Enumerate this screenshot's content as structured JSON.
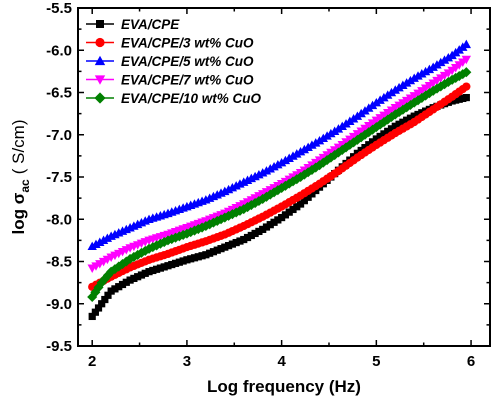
{
  "chart_data": {
    "type": "scatter",
    "xlabel": "Log frequency (Hz)",
    "ylabel": {
      "main": "log σ",
      "sub": "ac",
      "unit": "( S/cm)"
    },
    "xlim": [
      1.85,
      6.2
    ],
    "ylim": [
      -9.5,
      -5.5
    ],
    "xticks": [
      2,
      3,
      4,
      5,
      6
    ],
    "yticks": [
      -9.5,
      -9.0,
      -8.5,
      -8.0,
      -7.5,
      -7.0,
      -6.5,
      -6.0,
      -5.5
    ],
    "ytick_labels": [
      "-9.5",
      "-9.0",
      "-8.5",
      "-8.0",
      "-7.5",
      "-7.0",
      "-6.5",
      "-6.0",
      "-5.5"
    ],
    "grid": false,
    "legend_position": "top-left",
    "series": [
      {
        "name": "EVA/CPE",
        "color": "#000000",
        "marker": "square",
        "points": [
          [
            2.0,
            -9.15
          ],
          [
            2.1,
            -9.0
          ],
          [
            2.2,
            -8.85
          ],
          [
            2.4,
            -8.72
          ],
          [
            2.6,
            -8.62
          ],
          [
            2.8,
            -8.55
          ],
          [
            3.0,
            -8.48
          ],
          [
            3.2,
            -8.42
          ],
          [
            3.4,
            -8.33
          ],
          [
            3.6,
            -8.24
          ],
          [
            3.8,
            -8.12
          ],
          [
            4.0,
            -7.98
          ],
          [
            4.2,
            -7.82
          ],
          [
            4.4,
            -7.62
          ],
          [
            4.6,
            -7.42
          ],
          [
            4.8,
            -7.22
          ],
          [
            5.0,
            -7.05
          ],
          [
            5.2,
            -6.9
          ],
          [
            5.4,
            -6.78
          ],
          [
            5.6,
            -6.68
          ],
          [
            5.8,
            -6.6
          ],
          [
            5.95,
            -6.56
          ]
        ]
      },
      {
        "name": "EVA/CPE/3 wt% CuO",
        "color": "#ff0000",
        "marker": "circle",
        "points": [
          [
            2.0,
            -8.8
          ],
          [
            2.2,
            -8.68
          ],
          [
            2.4,
            -8.57
          ],
          [
            2.6,
            -8.48
          ],
          [
            2.8,
            -8.41
          ],
          [
            3.0,
            -8.33
          ],
          [
            3.2,
            -8.26
          ],
          [
            3.4,
            -8.18
          ],
          [
            3.6,
            -8.08
          ],
          [
            3.8,
            -7.97
          ],
          [
            4.0,
            -7.85
          ],
          [
            4.2,
            -7.72
          ],
          [
            4.4,
            -7.58
          ],
          [
            4.6,
            -7.43
          ],
          [
            4.8,
            -7.27
          ],
          [
            5.0,
            -7.12
          ],
          [
            5.2,
            -6.98
          ],
          [
            5.4,
            -6.85
          ],
          [
            5.6,
            -6.7
          ],
          [
            5.8,
            -6.55
          ],
          [
            5.95,
            -6.43
          ]
        ]
      },
      {
        "name": "EVA/CPE/5 wt% CuO",
        "color": "#0000ff",
        "marker": "triangle-up",
        "points": [
          [
            2.0,
            -8.32
          ],
          [
            2.2,
            -8.2
          ],
          [
            2.4,
            -8.1
          ],
          [
            2.6,
            -8.0
          ],
          [
            2.8,
            -7.93
          ],
          [
            3.0,
            -7.85
          ],
          [
            3.2,
            -7.77
          ],
          [
            3.4,
            -7.67
          ],
          [
            3.6,
            -7.56
          ],
          [
            3.8,
            -7.45
          ],
          [
            4.0,
            -7.33
          ],
          [
            4.2,
            -7.2
          ],
          [
            4.4,
            -7.07
          ],
          [
            4.6,
            -6.93
          ],
          [
            4.8,
            -6.78
          ],
          [
            5.0,
            -6.62
          ],
          [
            5.2,
            -6.47
          ],
          [
            5.4,
            -6.33
          ],
          [
            5.6,
            -6.2
          ],
          [
            5.8,
            -6.06
          ],
          [
            5.95,
            -5.93
          ]
        ]
      },
      {
        "name": "EVA/CPE/7 wt% CuO",
        "color": "#ff00ff",
        "marker": "triangle-down",
        "points": [
          [
            2.0,
            -8.58
          ],
          [
            2.2,
            -8.45
          ],
          [
            2.4,
            -8.34
          ],
          [
            2.6,
            -8.25
          ],
          [
            2.8,
            -8.18
          ],
          [
            3.0,
            -8.1
          ],
          [
            3.2,
            -8.02
          ],
          [
            3.4,
            -7.93
          ],
          [
            3.6,
            -7.82
          ],
          [
            3.8,
            -7.7
          ],
          [
            4.0,
            -7.58
          ],
          [
            4.2,
            -7.45
          ],
          [
            4.4,
            -7.3
          ],
          [
            4.6,
            -7.15
          ],
          [
            4.8,
            -6.99
          ],
          [
            5.0,
            -6.83
          ],
          [
            5.2,
            -6.68
          ],
          [
            5.4,
            -6.54
          ],
          [
            5.6,
            -6.39
          ],
          [
            5.8,
            -6.24
          ],
          [
            5.95,
            -6.11
          ]
        ]
      },
      {
        "name": "EVA/CPE/10 wt% CuO",
        "color": "#008000",
        "marker": "diamond",
        "points": [
          [
            2.0,
            -8.92
          ],
          [
            2.1,
            -8.75
          ],
          [
            2.2,
            -8.62
          ],
          [
            2.4,
            -8.47
          ],
          [
            2.6,
            -8.35
          ],
          [
            2.8,
            -8.25
          ],
          [
            3.0,
            -8.17
          ],
          [
            3.2,
            -8.08
          ],
          [
            3.4,
            -7.98
          ],
          [
            3.6,
            -7.88
          ],
          [
            3.8,
            -7.76
          ],
          [
            4.0,
            -7.63
          ],
          [
            4.2,
            -7.5
          ],
          [
            4.4,
            -7.36
          ],
          [
            4.6,
            -7.21
          ],
          [
            4.8,
            -7.06
          ],
          [
            5.0,
            -6.91
          ],
          [
            5.2,
            -6.76
          ],
          [
            5.4,
            -6.62
          ],
          [
            5.6,
            -6.48
          ],
          [
            5.8,
            -6.35
          ],
          [
            5.95,
            -6.26
          ]
        ]
      }
    ]
  }
}
